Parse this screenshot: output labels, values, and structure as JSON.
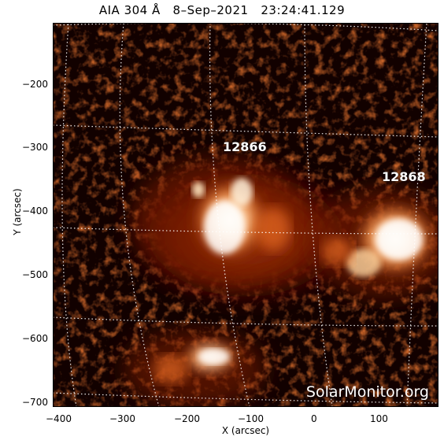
{
  "title": {
    "instrument": "AIA 304 Å",
    "date": "8–Sep–2021",
    "time": "23:24:41.129"
  },
  "image": {
    "colormap": "sdoaia304",
    "grid": true,
    "regions": [
      {
        "number": "12866"
      },
      {
        "number": "12868"
      }
    ],
    "watermark": "SolarMonitor.org"
  },
  "axes": {
    "xlabel": "X (arcsec)",
    "ylabel": "Y (arcsec)",
    "xticks": [
      "−400",
      "−300",
      "−200",
      "−100",
      "0",
      "100"
    ],
    "yticks": [
      "−200",
      "−300",
      "−400",
      "−500",
      "−600",
      "−700"
    ],
    "xlim": [
      -410,
      190
    ],
    "ylim": [
      -710,
      -110
    ]
  }
}
